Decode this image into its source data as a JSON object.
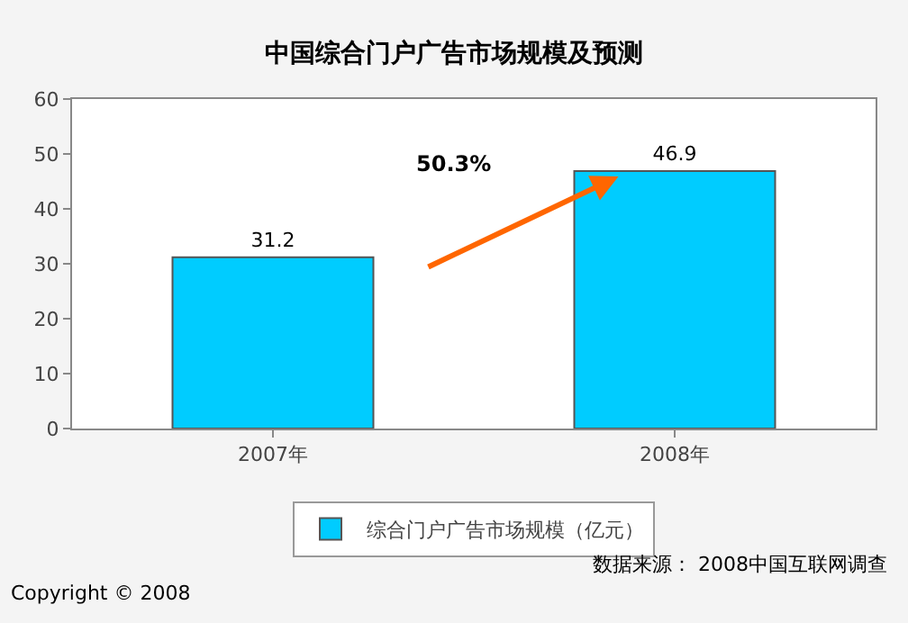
{
  "chart_data": {
    "type": "bar",
    "title": "中国综合门户广告市场规模及预测",
    "categories": [
      "2007年",
      "2008年"
    ],
    "series": [
      {
        "name": "综合门户广告市场规模（亿元）",
        "color": "#00ccff",
        "values": [
          31.2,
          46.9
        ]
      }
    ],
    "ylim": [
      0,
      60
    ],
    "yticks": [
      0,
      10,
      20,
      30,
      40,
      50,
      60
    ],
    "grid": false,
    "legend": "bottom",
    "data_labels": true,
    "annotations": [
      "50.3%",
      "数据来源： 2008中国互联网调查",
      "Copyright © 2008"
    ]
  }
}
